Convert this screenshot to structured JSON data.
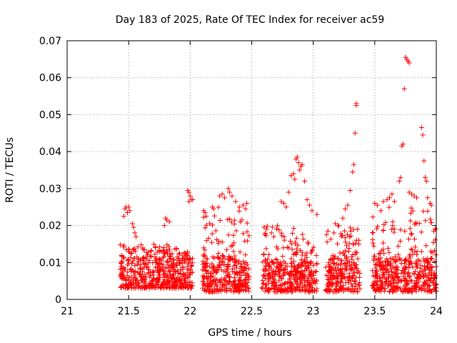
{
  "chart_data": {
    "type": "scatter",
    "title": "Day 183 of 2025, Rate Of TEC Index for receiver ac59",
    "xlabel": "GPS time / hours",
    "ylabel": "ROTI / TECUs",
    "xlim": [
      21,
      24
    ],
    "ylim": [
      0,
      0.07
    ],
    "x_ticks": [
      "21",
      "21.5",
      "22",
      "22.5",
      "23",
      "23.5",
      "24"
    ],
    "y_ticks": [
      "0",
      "0.01",
      "0.02",
      "0.03",
      "0.04",
      "0.05",
      "0.06",
      "0.07"
    ],
    "grid": true,
    "marker": "+",
    "color": "#ff0000",
    "clusters": [
      {
        "x_range": [
          21.43,
          21.9
        ],
        "base_low": 0.003,
        "base_high": 0.011,
        "spread_high": 0.015
      },
      {
        "x_range": [
          21.9,
          22.02
        ],
        "base_low": 0.003,
        "base_high": 0.011,
        "spread_high": 0.013
      },
      {
        "x_range": [
          22.1,
          22.48
        ],
        "base_low": 0.002,
        "base_high": 0.011,
        "spread_high": 0.025
      },
      {
        "x_range": [
          22.58,
          23.03
        ],
        "base_low": 0.002,
        "base_high": 0.01,
        "spread_high": 0.02
      },
      {
        "x_range": [
          23.1,
          23.38
        ],
        "base_low": 0.002,
        "base_high": 0.011,
        "spread_high": 0.02
      },
      {
        "x_range": [
          23.48,
          24.0
        ],
        "base_low": 0.002,
        "base_high": 0.011,
        "spread_high": 0.025
      }
    ],
    "points": [
      [
        21.46,
        0.0225
      ],
      [
        21.47,
        0.0245
      ],
      [
        21.48,
        0.025
      ],
      [
        21.49,
        0.0235
      ],
      [
        21.5,
        0.025
      ],
      [
        21.51,
        0.024
      ],
      [
        21.53,
        0.0205
      ],
      [
        21.54,
        0.0195
      ],
      [
        21.55,
        0.018
      ],
      [
        21.56,
        0.017
      ],
      [
        21.8,
        0.022
      ],
      [
        21.81,
        0.0215
      ],
      [
        21.83,
        0.021
      ],
      [
        21.79,
        0.02
      ],
      [
        21.98,
        0.0295
      ],
      [
        21.99,
        0.029
      ],
      [
        22.0,
        0.028
      ],
      [
        22.01,
        0.027
      ],
      [
        22.02,
        0.027
      ],
      [
        21.99,
        0.0265
      ],
      [
        22.11,
        0.024
      ],
      [
        22.12,
        0.0235
      ],
      [
        22.13,
        0.0225
      ],
      [
        22.18,
        0.025
      ],
      [
        22.19,
        0.0245
      ],
      [
        22.24,
        0.028
      ],
      [
        22.26,
        0.0285
      ],
      [
        22.28,
        0.0275
      ],
      [
        22.31,
        0.03
      ],
      [
        22.32,
        0.029
      ],
      [
        22.34,
        0.028
      ],
      [
        22.37,
        0.0265
      ],
      [
        22.4,
        0.025
      ],
      [
        22.43,
        0.0255
      ],
      [
        22.45,
        0.0245
      ],
      [
        22.46,
        0.026
      ],
      [
        22.6,
        0.0195
      ],
      [
        22.62,
        0.019
      ],
      [
        22.66,
        0.018
      ],
      [
        22.74,
        0.0265
      ],
      [
        22.76,
        0.026
      ],
      [
        22.78,
        0.025
      ],
      [
        22.8,
        0.029
      ],
      [
        22.82,
        0.0335
      ],
      [
        22.84,
        0.034
      ],
      [
        22.85,
        0.0325
      ],
      [
        22.86,
        0.038
      ],
      [
        22.87,
        0.0385
      ],
      [
        22.88,
        0.037
      ],
      [
        22.89,
        0.035
      ],
      [
        22.9,
        0.036
      ],
      [
        22.91,
        0.0365
      ],
      [
        22.93,
        0.032
      ],
      [
        22.95,
        0.027
      ],
      [
        22.97,
        0.0255
      ],
      [
        22.99,
        0.024
      ],
      [
        23.03,
        0.023
      ],
      [
        23.18,
        0.0205
      ],
      [
        23.2,
        0.02
      ],
      [
        23.24,
        0.022
      ],
      [
        23.26,
        0.0245
      ],
      [
        23.28,
        0.0255
      ],
      [
        23.3,
        0.0295
      ],
      [
        23.32,
        0.0345
      ],
      [
        23.33,
        0.0365
      ],
      [
        23.34,
        0.045
      ],
      [
        23.35,
        0.0525
      ],
      [
        23.35,
        0.053
      ],
      [
        23.36,
        0.019
      ],
      [
        23.37,
        0.016
      ],
      [
        23.5,
        0.026
      ],
      [
        23.52,
        0.0255
      ],
      [
        23.55,
        0.024
      ],
      [
        23.57,
        0.0265
      ],
      [
        23.6,
        0.027
      ],
      [
        23.62,
        0.0275
      ],
      [
        23.64,
        0.0285
      ],
      [
        23.66,
        0.0265
      ],
      [
        23.7,
        0.032
      ],
      [
        23.71,
        0.033
      ],
      [
        23.72,
        0.0415
      ],
      [
        23.73,
        0.042
      ],
      [
        23.74,
        0.057
      ],
      [
        23.75,
        0.0655
      ],
      [
        23.76,
        0.065
      ],
      [
        23.77,
        0.0645
      ],
      [
        23.78,
        0.064
      ],
      [
        23.78,
        0.029
      ],
      [
        23.8,
        0.0285
      ],
      [
        23.82,
        0.028
      ],
      [
        23.84,
        0.0275
      ],
      [
        23.88,
        0.0465
      ],
      [
        23.89,
        0.0445
      ],
      [
        23.9,
        0.0375
      ],
      [
        23.91,
        0.033
      ],
      [
        23.92,
        0.032
      ],
      [
        23.93,
        0.0275
      ],
      [
        23.95,
        0.026
      ],
      [
        23.96,
        0.0255
      ],
      [
        23.98,
        0.0185
      ],
      [
        23.99,
        0.019
      ]
    ]
  }
}
